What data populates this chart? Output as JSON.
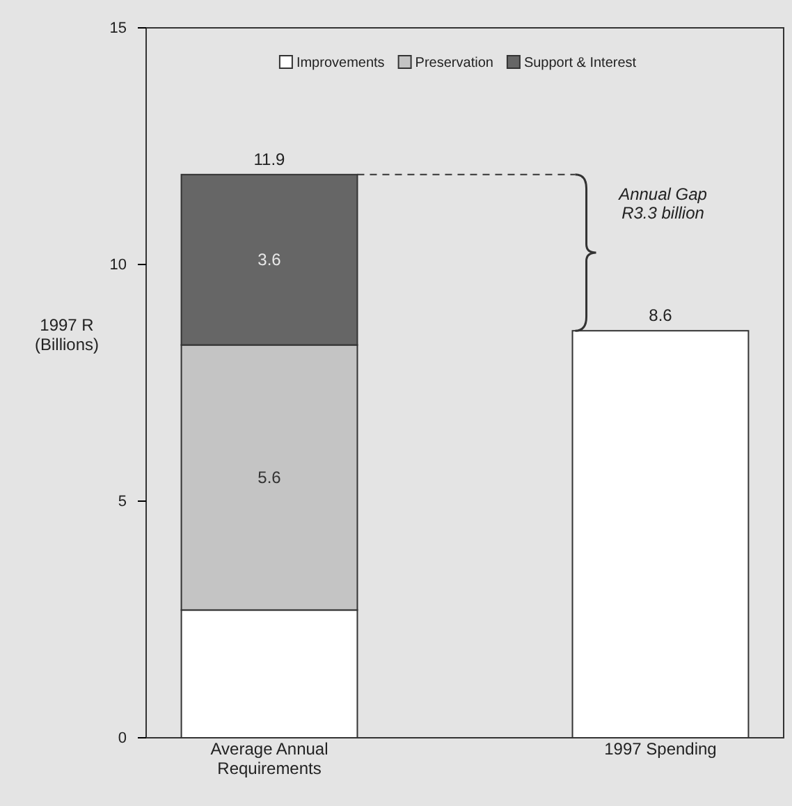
{
  "chart_data": {
    "type": "bar",
    "stacked": true,
    "ylabel": "1997 R (Billions)",
    "categories": [
      "Average Annual Requirements",
      "1997 Spending"
    ],
    "series": [
      {
        "name": "Improvements",
        "color": "#ffffff",
        "values": [
          2.7,
          null
        ],
        "value_labels": [
          null,
          null
        ]
      },
      {
        "name": "Preservation",
        "color": "#c4c4c4",
        "values": [
          5.6,
          null
        ],
        "value_labels": [
          "5.6",
          null
        ]
      },
      {
        "name": "Support & Interest",
        "color": "#666666",
        "values": [
          3.6,
          null
        ],
        "value_labels": [
          "3.6",
          null
        ]
      },
      {
        "color": "#ffffff",
        "values": [
          null,
          8.6
        ],
        "value_labels": [
          null,
          null
        ]
      }
    ],
    "totals": [
      "11.9",
      "8.6"
    ],
    "ylim": [
      0,
      15
    ],
    "yticks": [
      0,
      5,
      10,
      15
    ],
    "grid": false,
    "legend": "top",
    "annotations": [
      "Annual Gap R3.3 billion"
    ]
  }
}
